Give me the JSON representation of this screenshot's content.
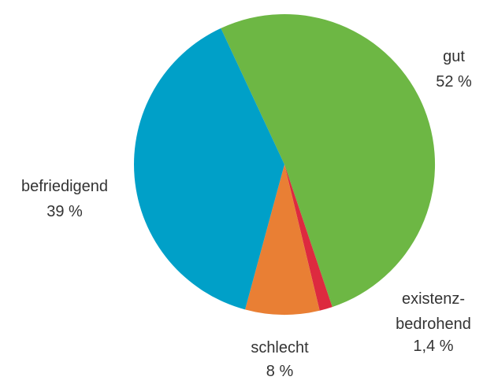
{
  "chart_data": {
    "type": "pie",
    "title": "",
    "slices": [
      {
        "label": "gut",
        "value_label": "52 %",
        "value": 52,
        "color": "#6db744"
      },
      {
        "label": "existenz-\nbedrohend",
        "value_label": "1,4 %",
        "value": 1.4,
        "color": "#dd2a3f"
      },
      {
        "label": "schlecht",
        "value_label": "8 %",
        "value": 8,
        "color": "#e97f34"
      },
      {
        "label": "befriedigend",
        "value_label": "39 %",
        "value": 39,
        "color": "#00a0c8"
      }
    ],
    "start_angle_deg": 335,
    "direction": "clockwise",
    "legend": "none",
    "labels_outside": true
  }
}
